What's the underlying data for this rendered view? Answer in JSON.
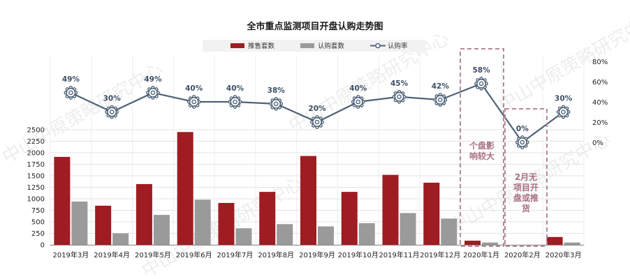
{
  "chart_data": {
    "type": "bar",
    "title": "全市重点监测项目开盘认购走势图",
    "categories": [
      "2019年3月",
      "2019年4月",
      "2019年5月",
      "2019年6月",
      "2019年7月",
      "2019年8月",
      "2019年9月",
      "2019年10月",
      "2019年11月",
      "2019年12月",
      "2020年1月",
      "2020年2月",
      "2020年3月"
    ],
    "series": [
      {
        "name": "推售套数",
        "type": "bar",
        "axis": "left",
        "color": "#9e1c22",
        "values": [
          1910,
          850,
          1320,
          2450,
          910,
          1150,
          1930,
          1150,
          1520,
          1350,
          90,
          0,
          170
        ]
      },
      {
        "name": "认购套数",
        "type": "bar",
        "axis": "left",
        "color": "#9a9a9a",
        "values": [
          940,
          250,
          650,
          980,
          360,
          450,
          400,
          470,
          690,
          570,
          50,
          0,
          50
        ]
      },
      {
        "name": "认购率",
        "type": "line",
        "axis": "right",
        "color": "#4e6278",
        "values": [
          49,
          30,
          49,
          40,
          40,
          38,
          20,
          40,
          45,
          42,
          58,
          0,
          30
        ],
        "labels": [
          "49%",
          "30%",
          "49%",
          "40%",
          "40%",
          "38%",
          "20%",
          "40%",
          "45%",
          "42%",
          "58%",
          "0%",
          "30%"
        ]
      }
    ],
    "y_left": {
      "min": 0,
      "max": 2500,
      "ticks": [
        "0",
        "250",
        "500",
        "750",
        "1000",
        "1250",
        "1500",
        "1750",
        "2000",
        "2250",
        "2500"
      ]
    },
    "y_right": {
      "min": 0,
      "max": 80,
      "ticks": [
        "0%",
        "20%",
        "40%",
        "60%",
        "80%"
      ]
    },
    "grid": true,
    "legend": "top",
    "annotations": [
      {
        "text_lines": [
          "个盘影",
          "响较大"
        ],
        "category": "2020年1月",
        "box": "dashed",
        "color": "#b48a98"
      },
      {
        "text_lines": [
          "2月无",
          "项目开",
          "盘或推",
          "货"
        ],
        "category": "2020年2月",
        "box": "dashed",
        "color": "#b48a98"
      }
    ],
    "watermark": "中山中原策略研究中心"
  }
}
